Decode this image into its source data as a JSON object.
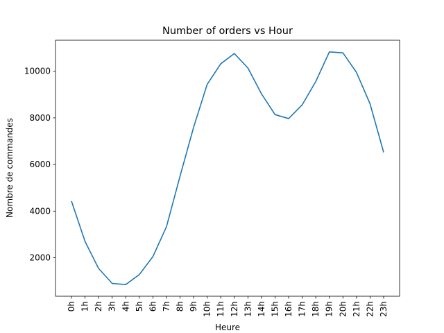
{
  "chart_data": {
    "type": "line",
    "title": "Number of orders vs Hour",
    "xlabel": "Heure",
    "ylabel": "Nombre de commandes",
    "categories": [
      "0h",
      "1h",
      "2h",
      "3h",
      "4h",
      "5h",
      "6h",
      "7h",
      "8h",
      "9h",
      "10h",
      "11h",
      "12h",
      "13h",
      "14h",
      "15h",
      "16h",
      "17h",
      "18h",
      "19h",
      "20h",
      "21h",
      "22h",
      "23h"
    ],
    "series": [
      {
        "values": [
          4430,
          2700,
          1540,
          900,
          850,
          1280,
          2050,
          3330,
          5500,
          7600,
          9440,
          10320,
          10760,
          10140,
          9030,
          8140,
          7970,
          8560,
          9560,
          10830,
          10790,
          9950,
          8600,
          6520
        ],
        "color": "#1f77b4"
      }
    ],
    "yticks": [
      2000,
      4000,
      6000,
      8000,
      10000
    ],
    "ylim": [
      350,
      11330
    ],
    "grid": false
  }
}
